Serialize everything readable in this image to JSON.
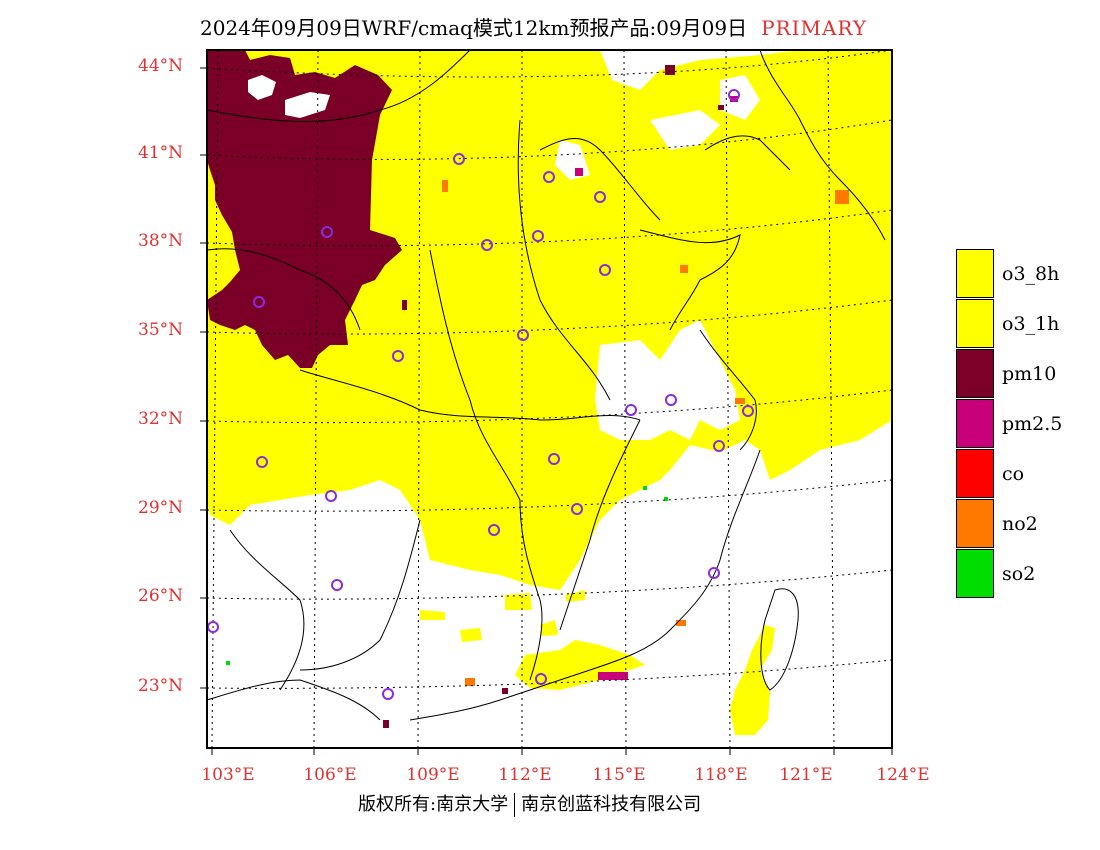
{
  "title": {
    "main": "2024年09月09日WRF/cmaq模式12km预报产品:09月09日",
    "tag": "PRIMARY"
  },
  "axes": {
    "latitudes": [
      "44°N",
      "41°N",
      "38°N",
      "35°N",
      "32°N",
      "29°N",
      "26°N",
      "23°N"
    ],
    "longitudes": [
      "103°E",
      "106°E",
      "109°E",
      "112°E",
      "115°E",
      "118°E",
      "121°E",
      "124°E"
    ]
  },
  "legend": [
    {
      "label": "o3_8h",
      "color": "#ffff00"
    },
    {
      "label": "o3_1h",
      "color": "#ffff00"
    },
    {
      "label": "pm10",
      "color": "#7a0028"
    },
    {
      "label": "pm2.5",
      "color": "#c8007a"
    },
    {
      "label": "co",
      "color": "#ff0000"
    },
    {
      "label": "no2",
      "color": "#ff7800"
    },
    {
      "label": "so2",
      "color": "#00dd00"
    }
  ],
  "footer": {
    "copyright": "版权所有:南京大学",
    "company": "南京创蓝科技有限公司"
  },
  "colors": {
    "axis_label": "#e03030",
    "station_marker": "#8a2be2"
  }
}
